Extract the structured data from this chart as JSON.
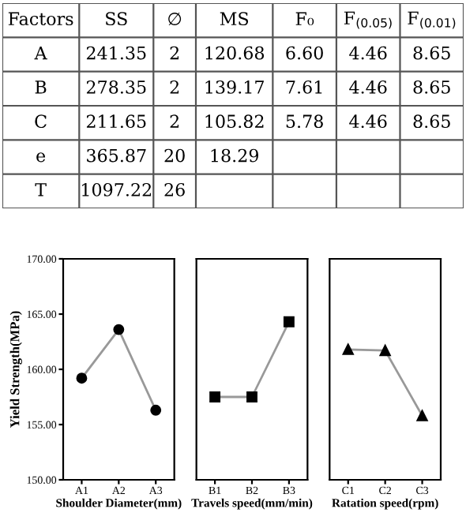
{
  "chart_data": [
    {
      "type": "other",
      "categories": [
        "Factors",
        "SS",
        "∅",
        "MS",
        "F₀",
        "F$_{(0.05)}$",
        "F$_{(0.01)}$"
      ],
      "cell_labels": [
        [
          "A",
          "241.35",
          "2",
          "120.68",
          "6.60",
          "4.46",
          "8.65"
        ],
        [
          "B",
          "278.35",
          "2",
          "139.17",
          "7.61",
          "4.46",
          "8.65"
        ],
        [
          "C",
          "211.65",
          "2",
          "105.82",
          "5.78",
          "4.46",
          "8.65"
        ],
        [
          "e",
          "365.87",
          "20",
          "18.29",
          null,
          null,
          null
        ],
        [
          "T",
          "1097.22",
          "26",
          null,
          null,
          null,
          null
        ]
      ]
    },
    {
      "type": "line",
      "categories": [
        "A1",
        "A2",
        "A3"
      ],
      "values": [
        159.2,
        163.6,
        156.3
      ],
      "color": "#999999",
      "marker": "circle",
      "xlabel": "Shoulder Diameter(mm)",
      "ylabel": "Yield Strength(MPa)",
      "ylim": [
        150,
        170
      ],
      "yticks": [
        {
          "value": 150,
          "label": "150.00"
        },
        {
          "value": 155,
          "label": "155.00"
        },
        {
          "value": 160,
          "label": "160.00"
        },
        {
          "value": 165,
          "label": "165.00"
        },
        {
          "value": 170,
          "label": "170.00"
        }
      ]
    },
    {
      "type": "line",
      "categories": [
        "B1",
        "B2",
        "B3"
      ],
      "values": [
        157.5,
        157.5,
        164.3
      ],
      "color": "#999999",
      "marker": "square",
      "xlabel": "Travels speed(mm/min)",
      "ylim": [
        150,
        170
      ],
      "tick_labels": "x"
    },
    {
      "type": "line",
      "categories": [
        "C1",
        "C2",
        "C3"
      ],
      "values": [
        161.8,
        161.7,
        155.8
      ],
      "color": "#999999",
      "marker": "triangle",
      "xlabel": "Ratation speed(rpm)",
      "ylim": [
        150,
        170
      ],
      "tick_labels": "x"
    }
  ]
}
